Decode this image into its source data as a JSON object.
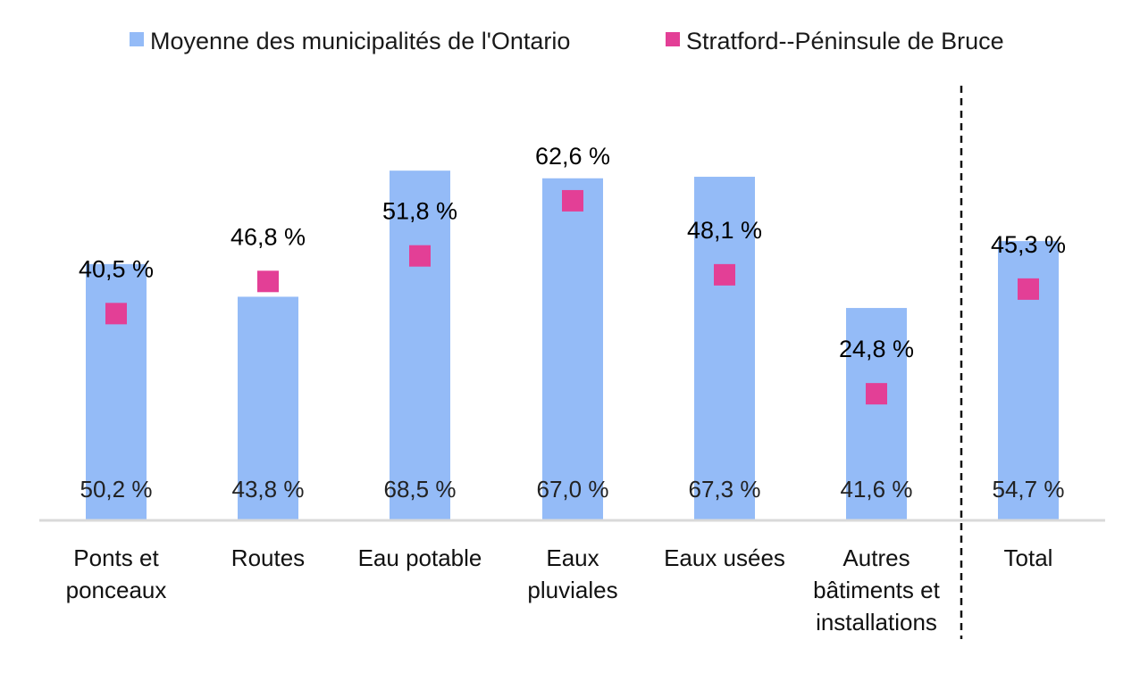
{
  "chart_data": {
    "type": "bar",
    "title": "",
    "xlabel": "",
    "ylabel": "",
    "ylim": [
      0,
      80
    ],
    "grid": false,
    "legend_position": "top",
    "categories": [
      [
        "Ponts et",
        "ponceaux"
      ],
      [
        "Routes"
      ],
      [
        "Eau potable"
      ],
      [
        "Eaux",
        "pluviales"
      ],
      [
        "Eaux usées"
      ],
      [
        "Autres",
        "bâtiments et",
        "installations"
      ],
      [
        "Total"
      ]
    ],
    "series": [
      {
        "name": "Moyenne des municipalités de l'Ontario",
        "type": "bar",
        "color": "#94BBF7",
        "values": [
          50.2,
          43.8,
          68.5,
          67.0,
          67.3,
          41.6,
          54.7
        ],
        "labels": [
          "50,2 %",
          "43,8 %",
          "68,5 %",
          "67,0 %",
          "67,3 %",
          "41,6 %",
          "54,7 %"
        ]
      },
      {
        "name": "Stratford--Péninsule de Bruce",
        "type": "marker",
        "color": "#E33F96",
        "values": [
          40.5,
          46.8,
          51.8,
          62.6,
          48.1,
          24.8,
          45.3
        ],
        "labels": [
          "40,5 %",
          "46,8 %",
          "51,8 %",
          "62,6 %",
          "48,1 %",
          "24,8 %",
          "45,3 %"
        ]
      }
    ],
    "separator_before_category": 6
  }
}
